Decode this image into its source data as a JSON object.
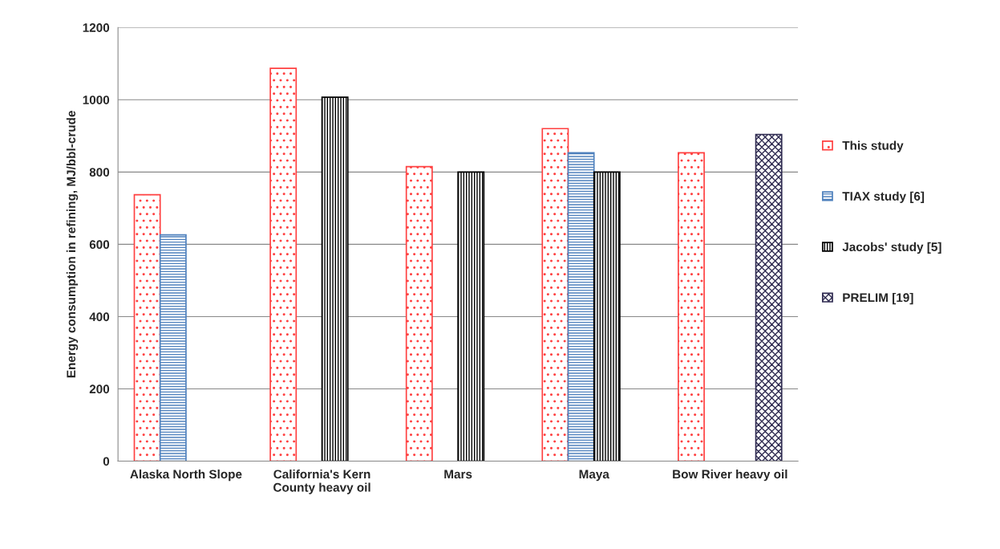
{
  "chart_data": {
    "type": "bar",
    "categories": [
      "Alaska North Slope",
      "California's Kern\nCounty heavy oil",
      "Mars",
      "Maya",
      "Bow River heavy oil"
    ],
    "series": [
      {
        "name": "This study",
        "color": "#ff4040",
        "values": [
          737,
          1087,
          815,
          920,
          853
        ]
      },
      {
        "name": "TIAX study [6]",
        "color": "#4f81bd",
        "values": [
          626,
          null,
          null,
          853,
          null
        ]
      },
      {
        "name": "Jacobs' study [5]",
        "color": "#000000",
        "values": [
          null,
          1007,
          800,
          800,
          null
        ]
      },
      {
        "name": "PRELIM [19]",
        "color": "#2e2a50",
        "values": [
          null,
          null,
          null,
          null,
          904
        ]
      }
    ],
    "ylabel": "Energy consumption in refining, MJ/bbl-crude",
    "ylim": [
      0,
      1200
    ],
    "yticks": [
      0,
      200,
      400,
      600,
      800,
      1000,
      1200
    ],
    "grid": "y",
    "legend": "right"
  }
}
